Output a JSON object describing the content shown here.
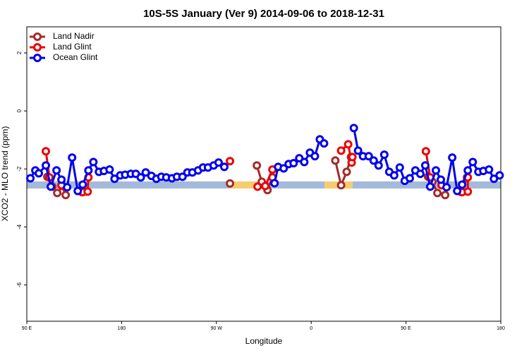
{
  "chart_data": {
    "type": "line",
    "title": "10S-5S January (Ver 9)   2014-09-06 to 2018-12-31",
    "x_label": "Longitude",
    "y_label": "XCO2 - MLO trend (ppm)",
    "xlim": [
      90,
      540
    ],
    "ylim": [
      -7.25,
      2.9
    ],
    "xticks": [
      {
        "value": 90,
        "label": "90 E"
      },
      {
        "value": 180,
        "label": "180"
      },
      {
        "value": 270,
        "label": "90 W"
      },
      {
        "value": 360,
        "label": "0"
      },
      {
        "value": 450,
        "label": "90 E"
      },
      {
        "value": 540,
        "label": "180"
      }
    ],
    "yticks": [
      -6,
      -4,
      -2,
      0,
      2
    ],
    "legend": "top-left",
    "series": [
      {
        "name": "Land Nadir",
        "color": "#a52a2a",
        "x": [
          109.5,
          114.2,
          118.9,
          123.6,
          126.9,
          null,
          142.4,
          null,
          282.9,
          null,
          308.4,
          313.1,
          318.5,
          323.2,
          null,
          382.9,
          388.4,
          393.7,
          397.8,
          null,
          471.0,
          475.1,
          479.8,
          487.2,
          null,
          502.6,
          507.9
        ],
        "values": [
          -2.27,
          -2.61,
          -2.83,
          -2.59,
          -2.9,
          null,
          -2.8,
          null,
          -2.5,
          null,
          -1.88,
          -2.44,
          -2.73,
          -2.29,
          null,
          -1.71,
          -2.56,
          -2.1,
          -1.59,
          null,
          -2.27,
          -2.44,
          -2.83,
          -2.9,
          null,
          -2.8,
          -2.29
        ]
      },
      {
        "name": "Land Glint",
        "color": "#ee0000",
        "x": [
          108.1,
          111.5,
          null,
          122.9,
          null,
          143.1,
          147.8,
          148.5,
          null,
          282.9,
          null,
          309.1,
          316.4,
          323.2,
          null,
          388.4,
          395.1,
          398.4,
          399.1,
          null,
          468.9,
          473.0,
          null,
          483.8,
          null,
          503.3,
          508.7,
          508.7
        ],
        "values": [
          -1.39,
          -2.29,
          null,
          -2.56,
          null,
          -2.8,
          -2.78,
          -2.29,
          null,
          -1.73,
          null,
          -2.61,
          -2.59,
          -2.02,
          null,
          -1.37,
          -1.15,
          -1.78,
          -1.59,
          null,
          -1.39,
          -2.29,
          null,
          -2.56,
          null,
          -2.8,
          -2.78,
          -2.29
        ]
      },
      {
        "name": "Ocean Glint",
        "color": "#0000ee",
        "x": [
          93.4,
          98.1,
          101.4,
          108.1,
          112.8,
          118.2,
          122.9,
          128.3,
          133.0,
          138.4,
          143.1,
          148.5,
          153.2,
          158.5,
          163.2,
          168.6,
          173.3,
          178.7,
          183.4,
          188.8,
          193.5,
          198.2,
          202.9,
          208.3,
          213.0,
          217.7,
          222.4,
          227.8,
          232.5,
          237.8,
          242.5,
          247.2,
          252.6,
          257.3,
          262.0,
          267.4,
          272.1,
          277.5,
          null,
          325.2,
          328.6,
          333.9,
          338.6,
          343.3,
          348.7,
          353.4,
          358.8,
          363.5,
          368.2,
          372.2,
          null,
          400.5,
          404.5,
          409.2,
          414.6,
          419.3,
          424.0,
          429.4,
          434.1,
          438.8,
          444.1,
          448.8,
          453.6,
          458.9,
          463.6,
          468.3,
          473.0,
          478.4,
          483.1,
          488.5,
          493.9,
          498.6,
          503.3,
          508.7,
          513.4,
          518.7,
          523.4,
          528.8,
          533.5,
          538.9
        ],
        "values": [
          -2.32,
          -2.05,
          -2.15,
          -1.88,
          -2.61,
          -2.05,
          -2.37,
          -2.63,
          -1.61,
          -2.76,
          -2.54,
          -2.05,
          -1.76,
          -2.1,
          -2.07,
          -2.02,
          -2.34,
          -2.22,
          -2.2,
          -2.17,
          -2.17,
          -2.29,
          -2.12,
          -2.24,
          -2.34,
          -2.27,
          -2.29,
          -2.32,
          -2.27,
          -2.27,
          -2.12,
          -2.12,
          -2.05,
          -1.95,
          -1.95,
          -1.88,
          -1.78,
          -1.93,
          null,
          -2.49,
          -1.93,
          -1.98,
          -1.83,
          -1.8,
          -1.63,
          -1.76,
          -1.44,
          -1.56,
          -0.98,
          -1.12,
          null,
          -0.59,
          -1.37,
          -1.56,
          -1.56,
          -1.71,
          -1.88,
          -1.51,
          -2.1,
          -2.22,
          -1.95,
          -2.41,
          -2.32,
          -2.05,
          -2.17,
          -1.88,
          -2.61,
          -2.05,
          -2.37,
          -2.63,
          -1.61,
          -2.76,
          -2.54,
          -2.05,
          -1.76,
          -2.1,
          -2.07,
          -2.02,
          -2.34,
          -2.22
        ]
      }
    ]
  }
}
